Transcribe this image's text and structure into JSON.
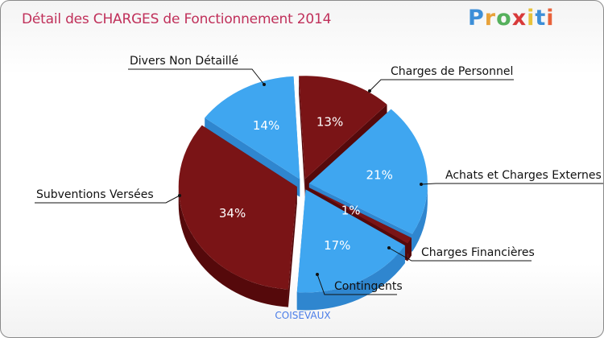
{
  "header": {
    "title": "Détail des CHARGES de Fonctionnement 2014"
  },
  "logo": {
    "text": "Proxiti",
    "letters": [
      "P",
      "r",
      "o",
      "x",
      "i",
      "t",
      "i"
    ],
    "colors": [
      "#3d8fd8",
      "#e8a23a",
      "#55b05c",
      "#d83a3a",
      "#e8c23a",
      "#3d8fd8",
      "#e8623a"
    ]
  },
  "footer": {
    "commune": "COISEVAUX"
  },
  "chart_data": {
    "type": "pie",
    "title": "Détail des CHARGES de Fonctionnement 2014",
    "subtitle": "COISEVAUX",
    "slices": [
      {
        "label": "Charges de Personnel",
        "value": 13,
        "display": "13%",
        "color": "#7a1416",
        "side": "#55090b"
      },
      {
        "label": "Achats et Charges Externes",
        "value": 21,
        "display": "21%",
        "color": "#3fa6f0",
        "side": "#2f86cf"
      },
      {
        "label": "Charges Financières",
        "value": 1,
        "display": "1%",
        "color": "#7a1416",
        "side": "#55090b"
      },
      {
        "label": "Contingents",
        "value": 17,
        "display": "17%",
        "color": "#3fa6f0",
        "side": "#2f86cf"
      },
      {
        "label": "Subventions Versées",
        "value": 34,
        "display": "34%",
        "color": "#7a1416",
        "side": "#55090b"
      },
      {
        "label": "Divers Non Détaillé",
        "value": 14,
        "display": "14%",
        "color": "#3fa6f0",
        "side": "#2f86cf"
      }
    ]
  }
}
